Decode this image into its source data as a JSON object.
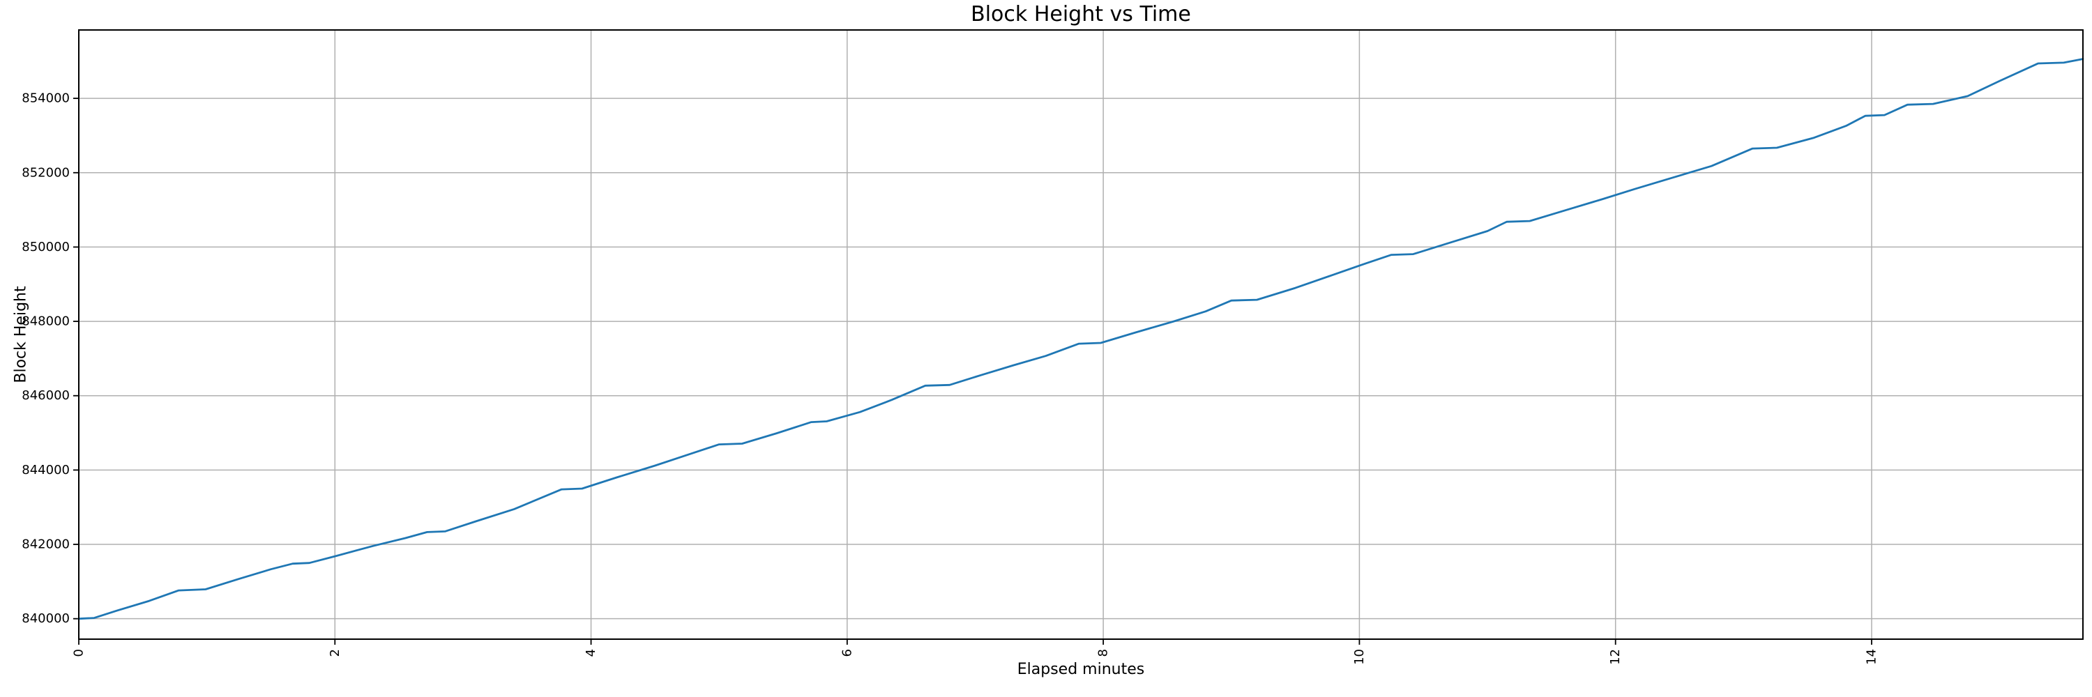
{
  "figure": {
    "background": "#ffffff"
  },
  "chart_data": {
    "type": "line",
    "title": "Block Height vs Time",
    "xlabel": "Elapsed minutes",
    "ylabel": "Block Height",
    "xlim": [
      0,
      15.65
    ],
    "ylim": [
      839450,
      855840
    ],
    "xticks": [
      0,
      2,
      4,
      6,
      8,
      10,
      12,
      14
    ],
    "yticks": [
      840000,
      842000,
      844000,
      846000,
      848000,
      850000,
      852000,
      854000
    ],
    "grid": true,
    "legend": "none",
    "colors": {
      "line": "#1f77b4",
      "grid": "#b0b0b0",
      "spine": "#000000",
      "text": "#000000"
    },
    "series": [
      {
        "name": "Block Height",
        "points": [
          [
            0.0,
            840000
          ],
          [
            0.12,
            840020
          ],
          [
            0.3,
            840220
          ],
          [
            0.55,
            840480
          ],
          [
            0.78,
            840760
          ],
          [
            0.99,
            840790
          ],
          [
            1.25,
            841070
          ],
          [
            1.5,
            841330
          ],
          [
            1.67,
            841480
          ],
          [
            1.8,
            841500
          ],
          [
            2.0,
            841680
          ],
          [
            2.3,
            841960
          ],
          [
            2.55,
            842170
          ],
          [
            2.72,
            842330
          ],
          [
            2.86,
            842350
          ],
          [
            3.1,
            842620
          ],
          [
            3.4,
            842950
          ],
          [
            3.77,
            843480
          ],
          [
            3.93,
            843500
          ],
          [
            4.2,
            843800
          ],
          [
            4.5,
            844120
          ],
          [
            4.78,
            844440
          ],
          [
            5.0,
            844690
          ],
          [
            5.18,
            844710
          ],
          [
            5.45,
            844990
          ],
          [
            5.72,
            845290
          ],
          [
            5.84,
            845310
          ],
          [
            6.1,
            845560
          ],
          [
            6.35,
            845890
          ],
          [
            6.61,
            846270
          ],
          [
            6.8,
            846290
          ],
          [
            7.05,
            846560
          ],
          [
            7.3,
            846820
          ],
          [
            7.55,
            847070
          ],
          [
            7.81,
            847400
          ],
          [
            7.98,
            847420
          ],
          [
            8.25,
            847700
          ],
          [
            8.55,
            848000
          ],
          [
            8.8,
            848270
          ],
          [
            9.0,
            848560
          ],
          [
            9.2,
            848580
          ],
          [
            9.5,
            848900
          ],
          [
            9.8,
            849260
          ],
          [
            10.05,
            849560
          ],
          [
            10.25,
            849790
          ],
          [
            10.42,
            849810
          ],
          [
            10.7,
            850110
          ],
          [
            11.0,
            850430
          ],
          [
            11.15,
            850680
          ],
          [
            11.33,
            850700
          ],
          [
            11.6,
            850980
          ],
          [
            11.9,
            851290
          ],
          [
            12.15,
            851560
          ],
          [
            12.45,
            851870
          ],
          [
            12.75,
            852180
          ],
          [
            13.07,
            852650
          ],
          [
            13.26,
            852670
          ],
          [
            13.55,
            852940
          ],
          [
            13.8,
            853260
          ],
          [
            13.95,
            853530
          ],
          [
            14.1,
            853550
          ],
          [
            14.28,
            853830
          ],
          [
            14.48,
            853850
          ],
          [
            14.75,
            854060
          ],
          [
            15.0,
            854470
          ],
          [
            15.3,
            854940
          ],
          [
            15.5,
            854960
          ],
          [
            15.65,
            855060
          ]
        ]
      }
    ]
  }
}
